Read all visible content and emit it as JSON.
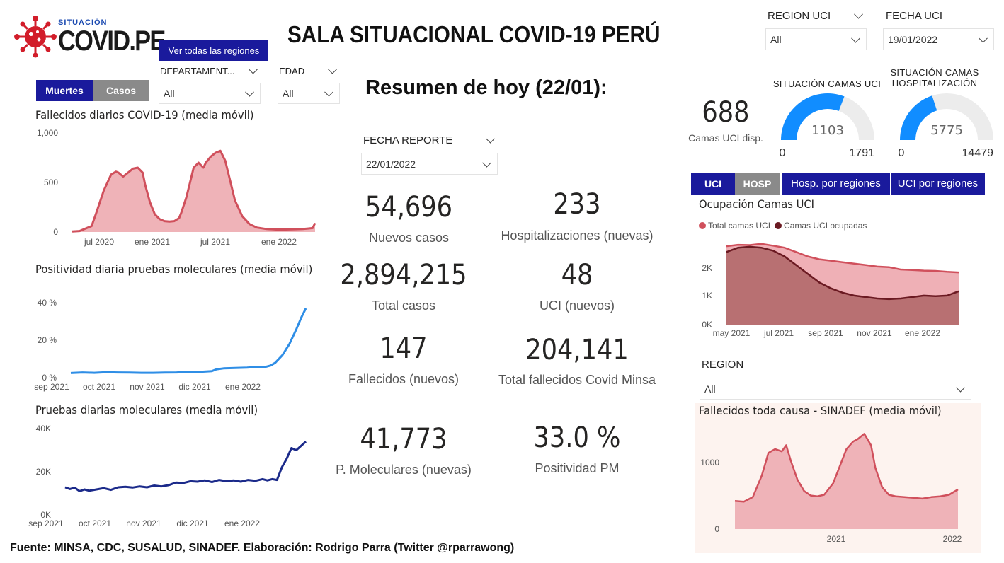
{
  "logo": {
    "small": "SITUACIÓN",
    "big": "COVID.PE"
  },
  "title": "SALA SITUACIONAL COVID-19 PERÚ",
  "buttons": {
    "ver_regiones": "Ver todas las regiones",
    "muertes": "Muertes",
    "casos": "Casos"
  },
  "slicers": {
    "departamento": {
      "label": "DEPARTAMENT...",
      "value": "All"
    },
    "edad": {
      "label": "EDAD",
      "value": "All"
    },
    "region_uci": {
      "label": "REGION UCI",
      "value": "All"
    },
    "fecha_uci": {
      "label": "FECHA UCI",
      "value": "19/01/2022"
    },
    "fecha_reporte": {
      "label": "FECHA REPORTE",
      "value": "22/01/2022"
    },
    "region": {
      "label": "REGION",
      "value": "All"
    }
  },
  "resumen": "Resumen de hoy (22/01):",
  "kpis": {
    "nuevos_casos": {
      "value": "54,696",
      "label": "Nuevos casos"
    },
    "hosp_nuevas": {
      "value": "233",
      "label": "Hospitalizaciones (nuevas)"
    },
    "total_casos": {
      "value": "2,894,215",
      "label": "Total casos"
    },
    "uci_nuevos": {
      "value": "48",
      "label": "UCI (nuevos)"
    },
    "fallecidos_nuevos": {
      "value": "147",
      "label": "Fallecidos  (nuevos)"
    },
    "total_fallecidos": {
      "value": "204,141",
      "label": "Total fallecidos Covid Minsa"
    },
    "pm_nuevas": {
      "value": "41,773",
      "label": "P. Moleculares (nuevas)"
    },
    "positividad": {
      "value": "33.0 %",
      "label": "Positividad PM"
    }
  },
  "camas_uci_disp": {
    "value": "688",
    "label": "Camas UCI disp."
  },
  "gauges": {
    "uci": {
      "title": "SITUACIÓN CAMAS UCI",
      "value": 1103,
      "min": 0,
      "max": 1791,
      "color": "#118DFF"
    },
    "hosp": {
      "title": "SITUACIÓN CAMAS HOSPITALIZACIÓN",
      "value": 5775,
      "min": 0,
      "max": 14479,
      "color": "#118DFF"
    }
  },
  "tabs": {
    "uci": "UCI",
    "hosp": "HOSP",
    "hosp_regiones": "Hosp. por regiones",
    "uci_regiones": "UCI por regiones"
  },
  "footer": "Fuente: MINSA, CDC, SUSALUD, SINADEF. Elaboración: Rodrigo Parra (Twitter @rparrawong)",
  "colors": {
    "accent": "#1a1a9c",
    "grey_btn": "#8a8a8a",
    "death_line": "#d0505c",
    "death_fill": "#efb3b8",
    "positivity": "#2f8ee6",
    "tests": "#1b2a8a",
    "uci_total": "#d0505c",
    "uci_occupied": "#6b1a22"
  },
  "chart_data": [
    {
      "id": "fallecidos",
      "type": "area",
      "title": "Fallecidos diarios COVID-19 (media móvil)",
      "x_ticks": [
        "jul 2020",
        "ene 2021",
        "jul 2021",
        "ene 2022"
      ],
      "y_ticks": [
        "1,000",
        "500",
        "0"
      ],
      "ylim": [
        0,
        1000
      ],
      "x": [
        0,
        0.03,
        0.08,
        0.1,
        0.13,
        0.16,
        0.18,
        0.19,
        0.21,
        0.23,
        0.25,
        0.27,
        0.29,
        0.3,
        0.32,
        0.34,
        0.36,
        0.38,
        0.4,
        0.42,
        0.44,
        0.45,
        0.47,
        0.49,
        0.5,
        0.52,
        0.54,
        0.55,
        0.57,
        0.59,
        0.61,
        0.63,
        0.65,
        0.67,
        0.7,
        0.73,
        0.76,
        0.8,
        0.84,
        0.88,
        0.92,
        0.95,
        0.97,
        0.99,
        1
      ],
      "values": [
        5,
        10,
        60,
        200,
        420,
        580,
        610,
        600,
        560,
        600,
        640,
        650,
        600,
        480,
        300,
        180,
        130,
        110,
        105,
        110,
        140,
        200,
        350,
        550,
        650,
        700,
        650,
        700,
        760,
        800,
        820,
        720,
        520,
        320,
        160,
        80,
        45,
        30,
        25,
        25,
        28,
        30,
        35,
        40,
        90
      ]
    },
    {
      "id": "positividad",
      "type": "line",
      "title": "Positividad diaria pruebas moleculares (media móvil)",
      "x_ticks": [
        "sep 2021",
        "oct 2021",
        "nov 2021",
        "dic 2021",
        "ene 2022"
      ],
      "y_ticks": [
        "40 %",
        "20 %",
        "0 %"
      ],
      "ylim": [
        0,
        40
      ],
      "x": [
        0,
        0.05,
        0.1,
        0.15,
        0.2,
        0.25,
        0.3,
        0.35,
        0.4,
        0.45,
        0.5,
        0.55,
        0.6,
        0.62,
        0.65,
        0.7,
        0.75,
        0.8,
        0.82,
        0.85,
        0.87,
        0.9,
        0.93,
        0.96,
        0.98,
        1
      ],
      "values": [
        2.5,
        2.8,
        2.6,
        2.9,
        2.8,
        2.7,
        2.6,
        2.6,
        2.7,
        2.8,
        3.0,
        3.1,
        3.5,
        4.5,
        5.0,
        5.2,
        5.4,
        5.8,
        5.5,
        6.5,
        8.0,
        12.0,
        18.0,
        26.0,
        32.0,
        37.0
      ]
    },
    {
      "id": "pruebas",
      "type": "line",
      "title": "Pruebas diarias moleculares (media móvil)",
      "x_ticks": [
        "sep 2021",
        "oct 2021",
        "nov 2021",
        "dic 2021",
        "ene 2022"
      ],
      "y_ticks": [
        "40K",
        "20K",
        "0K"
      ],
      "ylim": [
        0,
        40000
      ],
      "x": [
        0,
        0.02,
        0.04,
        0.06,
        0.08,
        0.1,
        0.13,
        0.16,
        0.19,
        0.22,
        0.25,
        0.28,
        0.31,
        0.34,
        0.37,
        0.4,
        0.43,
        0.46,
        0.49,
        0.52,
        0.55,
        0.58,
        0.61,
        0.64,
        0.67,
        0.7,
        0.73,
        0.76,
        0.79,
        0.82,
        0.84,
        0.86,
        0.88,
        0.9,
        0.92,
        0.94,
        0.96,
        0.98,
        1
      ],
      "values": [
        12800,
        12000,
        12600,
        11000,
        11800,
        11200,
        11800,
        12400,
        11600,
        12800,
        13000,
        12700,
        13200,
        12800,
        13600,
        13200,
        13800,
        15000,
        14800,
        15600,
        15400,
        16000,
        15200,
        16200,
        15600,
        16000,
        15400,
        16200,
        15800,
        16600,
        16000,
        16600,
        16200,
        22000,
        26000,
        31000,
        30000,
        32000,
        34000
      ]
    },
    {
      "id": "ocupacion_uci",
      "type": "area",
      "title": "Ocupación Camas UCI",
      "x_ticks": [
        "may 2021",
        "jul 2021",
        "sep 2021",
        "nov 2021",
        "ene 2022"
      ],
      "y_ticks": [
        "2K",
        "1K",
        "0K"
      ],
      "ylim": [
        0,
        2800
      ],
      "legend_placement": "top-left",
      "series": [
        {
          "name": "Total camas UCI",
          "x": [
            0,
            0.05,
            0.1,
            0.15,
            0.2,
            0.25,
            0.3,
            0.35,
            0.4,
            0.45,
            0.5,
            0.55,
            0.6,
            0.65,
            0.7,
            0.75,
            0.8,
            0.85,
            0.9,
            0.95,
            1
          ],
          "values": [
            2700,
            2750,
            2740,
            2780,
            2720,
            2650,
            2500,
            2350,
            2250,
            2200,
            2150,
            2100,
            2050,
            2000,
            1980,
            1900,
            1880,
            1860,
            1850,
            1820,
            1800
          ]
        },
        {
          "name": "Camas UCI ocupadas",
          "x": [
            0,
            0.05,
            0.1,
            0.15,
            0.2,
            0.25,
            0.3,
            0.35,
            0.4,
            0.45,
            0.5,
            0.55,
            0.6,
            0.65,
            0.7,
            0.75,
            0.8,
            0.85,
            0.9,
            0.95,
            1
          ],
          "values": [
            2500,
            2650,
            2680,
            2650,
            2550,
            2350,
            2050,
            1750,
            1450,
            1250,
            1100,
            1000,
            950,
            900,
            880,
            900,
            950,
            1000,
            980,
            1000,
            1150
          ]
        }
      ]
    },
    {
      "id": "sinadef",
      "type": "area",
      "title": "Fallecidos toda causa - SINADEF (media móvil)",
      "x_ticks": [
        "2021",
        "2022"
      ],
      "y_ticks": [
        "1000",
        "0"
      ],
      "ylim": [
        0,
        1300
      ],
      "x": [
        0,
        0.04,
        0.08,
        0.12,
        0.15,
        0.18,
        0.21,
        0.23,
        0.25,
        0.28,
        0.31,
        0.34,
        0.37,
        0.4,
        0.44,
        0.48,
        0.5,
        0.53,
        0.55,
        0.58,
        0.61,
        0.63,
        0.66,
        0.69,
        0.72,
        0.76,
        0.8,
        0.84,
        0.88,
        0.92,
        0.96,
        1
      ],
      "values": [
        370,
        360,
        420,
        700,
        1000,
        1050,
        1020,
        1100,
        900,
        650,
        500,
        440,
        430,
        450,
        600,
        900,
        1050,
        1150,
        1180,
        1250,
        1100,
        800,
        550,
        450,
        430,
        420,
        410,
        400,
        420,
        430,
        450,
        520
      ]
    }
  ]
}
